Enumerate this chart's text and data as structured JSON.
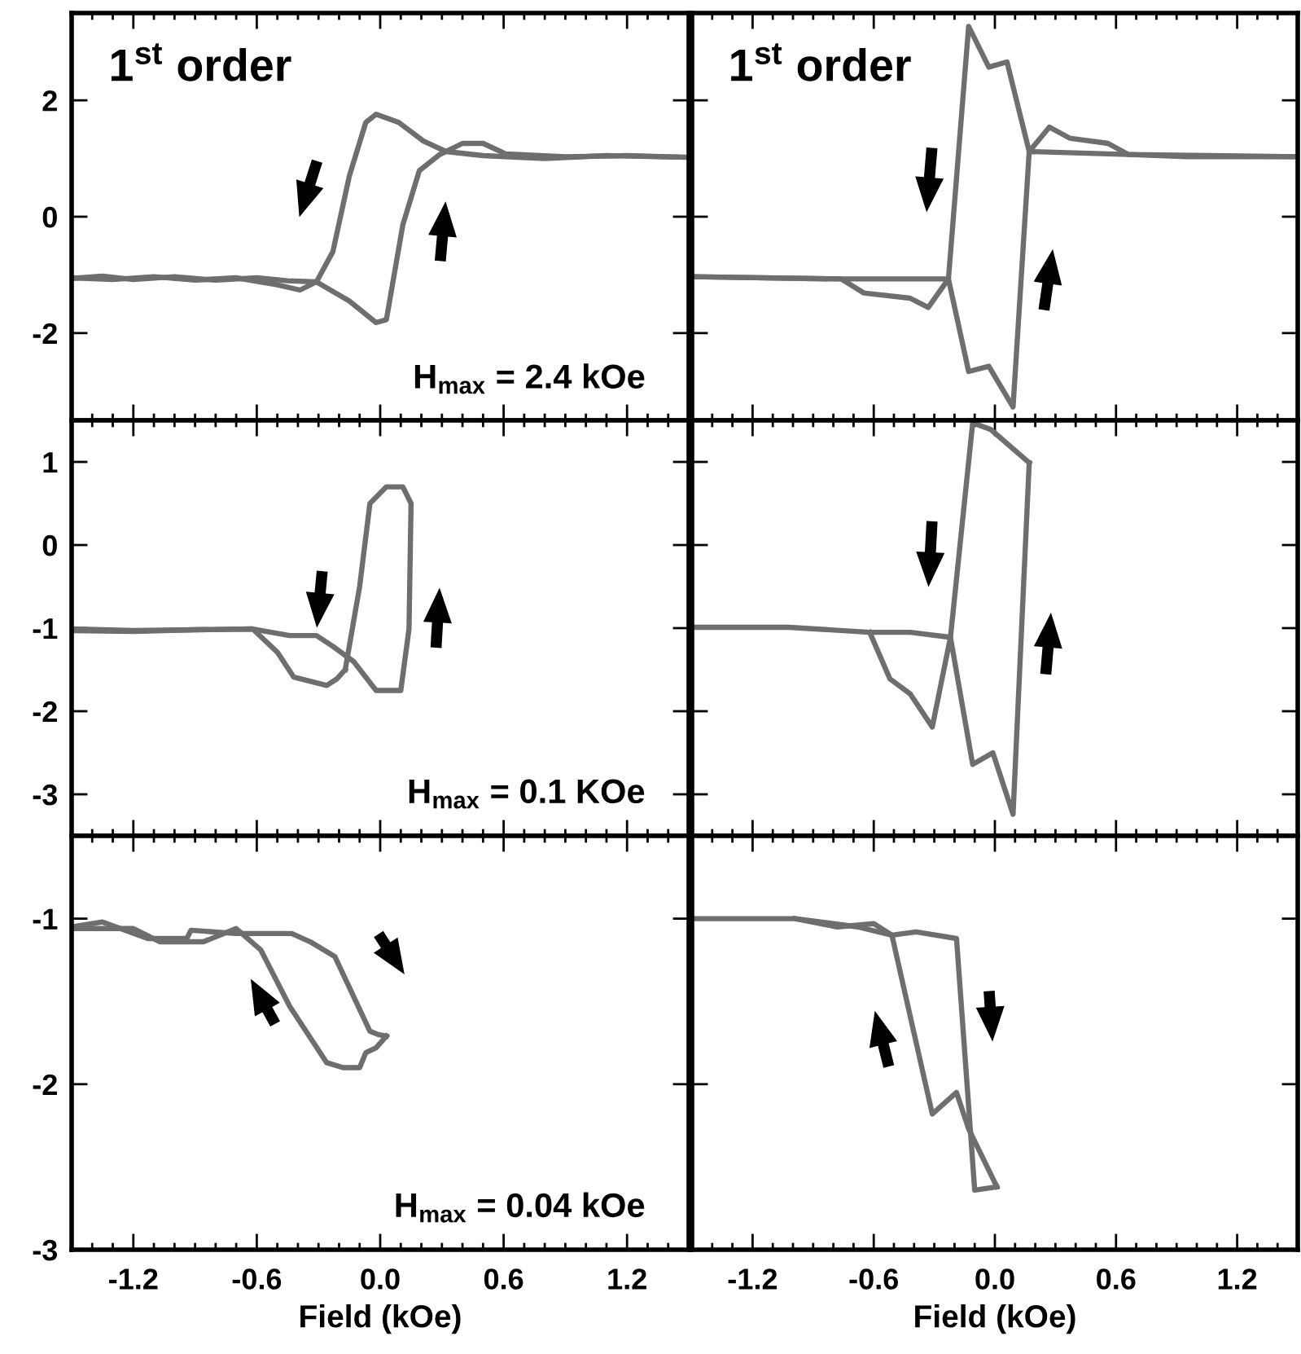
{
  "chart_data": [
    {
      "type": "line",
      "title": "1$^{st}$ order",
      "annotations": [
        "H$_{max}$ = 2.4 kOe"
      ],
      "xlim": [
        -1.5,
        1.5
      ],
      "ylim": [
        -3.5,
        3.5
      ],
      "xticks": [
        -1.2,
        -0.6,
        0,
        0.6,
        1.2
      ],
      "yticks": [
        -2,
        0,
        2
      ],
      "tick_labels": "y",
      "series": [
        {
          "color": "#6e6e6e",
          "x": [
            -1.5,
            -1.35,
            -1.2,
            -1.0,
            -0.8,
            -0.6,
            -0.45,
            -0.31,
            -0.23,
            -0.15,
            -0.07,
            -0.02,
            0.09,
            0.21,
            0.32,
            0.5,
            0.8,
            1.1,
            1.5
          ],
          "values": [
            -1.06,
            -1.02,
            -1.08,
            -1.03,
            -1.09,
            -1.05,
            -1.1,
            -1.12,
            -0.6,
            0.7,
            1.62,
            1.76,
            1.62,
            1.3,
            1.12,
            1.05,
            1.0,
            1.05,
            1.02
          ]
        },
        {
          "color": "#6e6e6e",
          "x": [
            -1.5,
            -1.3,
            -1.1,
            -0.9,
            -0.7,
            -0.5,
            -0.39,
            -0.31,
            -0.15,
            -0.02,
            0.03,
            0.11,
            0.19,
            0.29,
            0.4,
            0.5,
            0.61,
            0.9,
            1.2,
            1.5
          ],
          "values": [
            -1.05,
            -1.08,
            -1.03,
            -1.09,
            -1.05,
            -1.17,
            -1.26,
            -1.12,
            -1.45,
            -1.82,
            -1.77,
            -0.14,
            0.79,
            1.07,
            1.26,
            1.26,
            1.08,
            1.03,
            1.05,
            1.02
          ]
        }
      ]
    },
    {
      "type": "line",
      "title": "1$^{st}$ order",
      "xlim": [
        -1.5,
        1.5
      ],
      "ylim": [
        -3.5,
        3.5
      ],
      "xticks": [
        -1.2,
        -0.6,
        0,
        0.6,
        1.2
      ],
      "yticks": [
        -2,
        0,
        2
      ],
      "tick_labels": false,
      "series": [
        {
          "color": "#6e6e6e",
          "x": [
            -1.5,
            -0.76,
            -0.23,
            -0.13,
            -0.03,
            0.06,
            0.17,
            0.27,
            0.37,
            0.56,
            0.66,
            0.95,
            1.5
          ],
          "values": [
            -1.03,
            -1.07,
            -1.07,
            3.27,
            2.57,
            2.66,
            1.12,
            1.54,
            1.35,
            1.26,
            1.07,
            1.03,
            1.03
          ]
        },
        {
          "color": "#6e6e6e",
          "x": [
            -1.5,
            -0.76,
            -0.65,
            -0.42,
            -0.33,
            -0.23,
            -0.13,
            -0.03,
            0.09,
            0.17,
            0.66,
            1.5
          ],
          "values": [
            -1.03,
            -1.07,
            -1.31,
            -1.4,
            -1.56,
            -1.07,
            -2.66,
            -2.57,
            -3.27,
            1.12,
            1.07,
            1.03
          ]
        }
      ]
    },
    {
      "type": "line",
      "annotations": [
        "H$_{max}$ = 0.1 KOe"
      ],
      "xlim": [
        -1.5,
        1.5
      ],
      "ylim": [
        -3.5,
        1.5
      ],
      "xticks": [
        -1.2,
        -0.6,
        0,
        0.6,
        1.2
      ],
      "yticks": [
        1,
        0,
        -1,
        -2,
        -3
      ],
      "tick_labels": "y",
      "series": [
        {
          "color": "#6e6e6e",
          "x": [
            -1.5,
            -1.2,
            -0.9,
            -0.62,
            -0.44,
            -0.31,
            -0.23,
            -0.13,
            -0.02,
            0.1,
            0.14,
            0.15,
            0.11,
            0.03,
            -0.05,
            -0.1,
            -0.17
          ],
          "values": [
            -1.01,
            -1.03,
            -1.02,
            -1.01,
            -1.09,
            -1.09,
            -1.22,
            -1.4,
            -1.75,
            -1.75,
            -1.01,
            0.5,
            0.7,
            0.7,
            0.5,
            -0.5,
            -1.5
          ]
        },
        {
          "color": "#6e6e6e",
          "x": [
            -1.5,
            -1.2,
            -0.9,
            -0.62,
            -0.5,
            -0.42,
            -0.26,
            -0.21,
            -0.17
          ],
          "values": [
            -1.03,
            -1.04,
            -1.02,
            -1.01,
            -1.29,
            -1.59,
            -1.69,
            -1.61,
            -1.5
          ]
        }
      ]
    },
    {
      "type": "line",
      "xlim": [
        -1.5,
        1.5
      ],
      "ylim": [
        -3.5,
        1.5
      ],
      "xticks": [
        -1.2,
        -0.6,
        0,
        0.6,
        1.2
      ],
      "yticks": [
        1,
        0,
        -1,
        -2,
        -3
      ],
      "tick_labels": false,
      "series": [
        {
          "color": "#6e6e6e",
          "x": [
            -1.5,
            -1.02,
            -0.62,
            -0.42,
            -0.22,
            -0.11,
            -0.02,
            0.17
          ],
          "values": [
            -0.99,
            -0.99,
            -1.05,
            -1.05,
            -1.11,
            1.47,
            1.39,
            0.99
          ]
        },
        {
          "color": "#6e6e6e",
          "x": [
            -0.62,
            -0.52,
            -0.42,
            -0.31,
            -0.22,
            -0.11,
            -0.01,
            0.09,
            0.17
          ],
          "values": [
            -1.05,
            -1.61,
            -1.79,
            -2.19,
            -1.11,
            -2.64,
            -2.5,
            -3.24,
            0.99
          ]
        }
      ]
    },
    {
      "type": "line",
      "annotations": [
        "H$_{max}$ = 0.04 kOe"
      ],
      "xlabel": "Field (kOe)",
      "xlim": [
        -1.5,
        1.5
      ],
      "ylim": [
        -3,
        -0.5
      ],
      "xticks": [
        -1.2,
        -0.6,
        {
          "value": 0,
          "label": "0.0"
        },
        0.6,
        1.2
      ],
      "yticks": [
        -1,
        -2,
        -3
      ],
      "series": [
        {
          "color": "#6e6e6e",
          "x": [
            -1.5,
            -1.35,
            -1.13,
            -0.94,
            -0.92,
            -0.7,
            -0.43,
            -0.34,
            -0.22,
            -0.05,
            -0.01,
            0.03
          ],
          "values": [
            -1.05,
            -1.02,
            -1.12,
            -1.12,
            -1.07,
            -1.09,
            -1.09,
            -1.14,
            -1.23,
            -1.68,
            -1.7,
            -1.71
          ]
        },
        {
          "color": "#6e6e6e",
          "x": [
            0.03,
            -0.02,
            -0.07,
            -0.1,
            -0.18,
            -0.26,
            -0.44,
            -0.58,
            -0.7,
            -0.86,
            -1.07,
            -1.2,
            -1.5
          ],
          "values": [
            -1.71,
            -1.78,
            -1.81,
            -1.9,
            -1.9,
            -1.87,
            -1.53,
            -1.19,
            -1.06,
            -1.14,
            -1.14,
            -1.06,
            -1.06
          ]
        }
      ]
    },
    {
      "type": "line",
      "xlabel": "Field (kOe)",
      "xlim": [
        -1.5,
        1.5
      ],
      "ylim": [
        -3,
        -0.5
      ],
      "xticks": [
        -1.2,
        -0.6,
        {
          "value": 0,
          "label": "0.0"
        },
        0.6,
        1.2
      ],
      "yticks": [
        -1,
        -2,
        -3
      ],
      "tick_labels": "x",
      "series": [
        {
          "color": "#6e6e6e",
          "x": [
            -1.5,
            -0.99,
            -0.78,
            -0.6,
            -0.51,
            -0.39,
            -0.19,
            -0.1,
            0.01
          ],
          "values": [
            -1.0,
            -1.0,
            -1.05,
            -1.03,
            -1.1,
            -1.08,
            -1.12,
            -2.64,
            -2.62
          ]
        },
        {
          "color": "#6e6e6e",
          "x": [
            0.01,
            -0.13,
            -0.19,
            -0.31,
            -0.51,
            -0.68,
            -0.99
          ],
          "values": [
            -2.62,
            -2.27,
            -2.05,
            -2.18,
            -1.1,
            -1.05,
            -1.0
          ]
        }
      ]
    }
  ]
}
